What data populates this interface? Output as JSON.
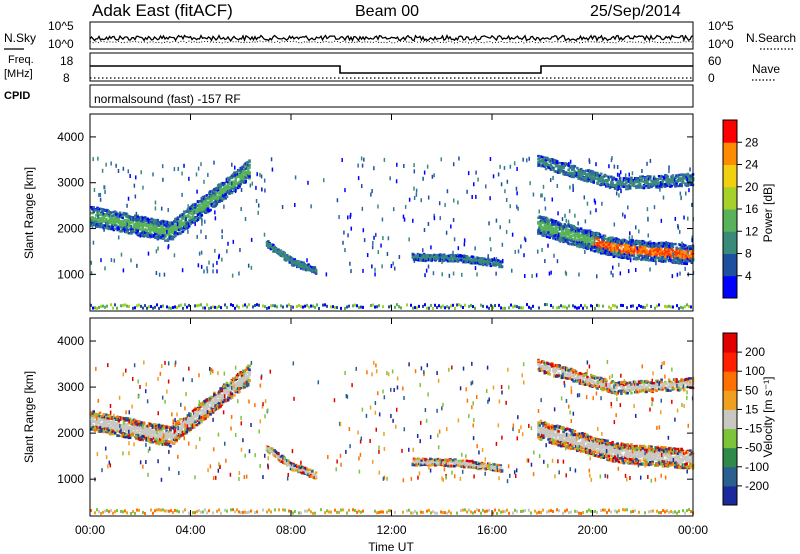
{
  "header": {
    "station": "Adak East (fitACF)",
    "beam": "Beam 00",
    "date": "25/Sep/2014"
  },
  "top_panels": {
    "nsky_label": "N.Sky",
    "nsearch_label": "N.Search",
    "nsky_ticks": [
      "10^5",
      "10^0"
    ],
    "nsearch_ticks": [
      "10^5",
      "10^0"
    ],
    "freq_label": "Freq.",
    "freq_unit": "[MHz]",
    "freq_ticks": [
      "18",
      "8"
    ],
    "nave_label": "Nave",
    "nave_ticks": [
      "60",
      "0"
    ],
    "cpid_label": "CPID",
    "cpid_text": "normalsound (fast) -157 RF"
  },
  "chart_data": [
    {
      "type": "heatmap",
      "name": "power",
      "ylabel": "Slant Range [km]",
      "ylim": [
        200,
        4500
      ],
      "yticks": [
        "4000",
        "3000",
        "2000",
        "1000"
      ],
      "ytick_values": [
        4000,
        3000,
        2000,
        1000
      ],
      "colorbar_label": "Power [dB]",
      "colorbar_ticks": [
        "28",
        "24",
        "20",
        "16",
        "12",
        "8",
        "4"
      ],
      "colorbar_colors": [
        "#0000ff",
        "#1f4f9f",
        "#3a8a7a",
        "#58b25a",
        "#a6d02a",
        "#f0d010",
        "#ff8c00",
        "#ff0000"
      ],
      "echo_bands": [
        {
          "start_h": 0.0,
          "end_h": 6.3,
          "r_start": 2300,
          "r_mid": 1950,
          "r_end": 3300,
          "level": "strong"
        },
        {
          "start_h": 17.8,
          "end_h": 24.0,
          "r_start": 2100,
          "r_mid": 1600,
          "r_end": 1450,
          "level": "strong"
        },
        {
          "start_h": 17.8,
          "end_h": 24.0,
          "r_start": 3500,
          "r_mid": 3000,
          "r_end": 3100,
          "level": "moderate"
        },
        {
          "start_h": 12.8,
          "end_h": 16.4,
          "r_start": 1400,
          "r_mid": 1380,
          "r_end": 1250,
          "level": "weak"
        },
        {
          "start_h": 7.0,
          "end_h": 9.0,
          "r_start": 1700,
          "r_mid": 1300,
          "r_end": 1100,
          "level": "weak"
        }
      ]
    },
    {
      "type": "heatmap",
      "name": "velocity",
      "ylabel": "Slant Range [km]",
      "ylim": [
        200,
        4500
      ],
      "yticks": [
        "4000",
        "3000",
        "2000",
        "1000"
      ],
      "ytick_values": [
        4000,
        3000,
        2000,
        1000
      ],
      "colorbar_label": "Velocity [m s⁻¹]",
      "colorbar_ticks": [
        "200",
        "100",
        "50",
        "15",
        "-15",
        "-50",
        "-100",
        "-200"
      ],
      "colorbar_colors": [
        "#1a2a9a",
        "#2a6090",
        "#2e8a4a",
        "#7cc43a",
        "#c8c8c0",
        "#f0a020",
        "#ff7000",
        "#ff2000",
        "#e00000"
      ],
      "xlabel": "Time UT",
      "xticks": [
        "00:00",
        "04:00",
        "08:00",
        "12:00",
        "16:00",
        "20:00",
        "00:00"
      ],
      "xlim_hours": [
        0,
        24
      ]
    }
  ],
  "colors": {
    "axis": "#000000",
    "background": "#ffffff"
  }
}
